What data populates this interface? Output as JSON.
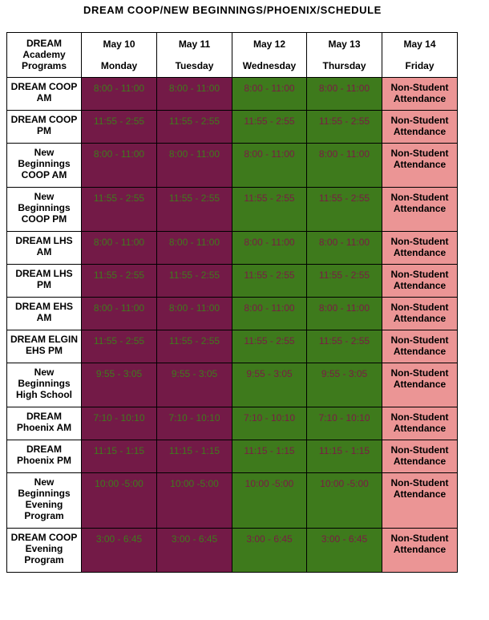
{
  "title": "DREAM COOP/NEW BEGINNINGS/PHOENIX/SCHEDULE",
  "header": {
    "corner": "DREAM Academy Programs",
    "days": [
      {
        "date": "May 10",
        "day": "Monday"
      },
      {
        "date": "May 11",
        "day": "Tuesday"
      },
      {
        "date": "May 12",
        "day": "Wednesday"
      },
      {
        "date": "May 13",
        "day": "Thursday"
      },
      {
        "date": "May 14",
        "day": "Friday"
      }
    ]
  },
  "colors": {
    "mon_tue": "#731a47",
    "wed_thu": "#3e7a1c",
    "fri": "#eb9595"
  },
  "friday_text": "Non-Student Attendance",
  "rows": [
    {
      "program": "DREAM COOP AM",
      "time": "8:00 - 11:00"
    },
    {
      "program": "DREAM COOP PM",
      "time": "11:55 - 2:55"
    },
    {
      "program": "New Beginnings COOP AM",
      "time": "8:00 - 11:00"
    },
    {
      "program": "New Beginnings COOP PM",
      "time": "11:55 - 2:55"
    },
    {
      "program": "DREAM LHS AM",
      "time": "8:00 - 11:00"
    },
    {
      "program": "DREAM LHS PM",
      "time": "11:55 - 2:55"
    },
    {
      "program": "DREAM EHS AM",
      "time": "8:00 - 11:00"
    },
    {
      "program": "DREAM ELGIN EHS PM",
      "time": "11:55 - 2:55"
    },
    {
      "program": "New Beginnings High School",
      "time": "9:55 - 3:05"
    },
    {
      "program": "DREAM Phoenix AM",
      "time": "7:10 - 10:10"
    },
    {
      "program": "DREAM Phoenix PM",
      "time": "11:15 - 1:15"
    },
    {
      "program": "New Beginnings Evening Program",
      "time": "10:00 -5:00"
    },
    {
      "program": "DREAM COOP Evening Program",
      "time": "3:00 - 6:45"
    }
  ]
}
